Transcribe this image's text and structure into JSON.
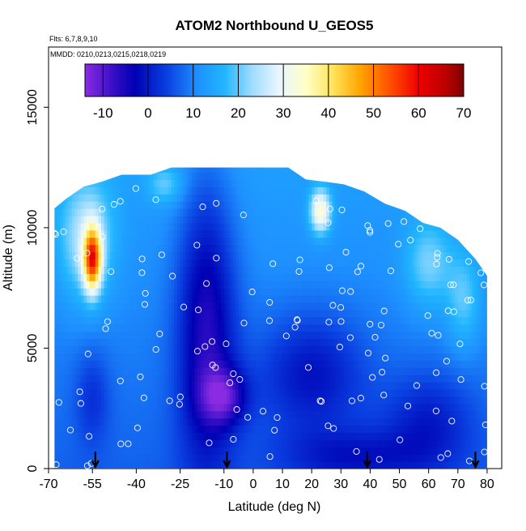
{
  "chart_data": {
    "type": "heatmap",
    "title": "ATOM2 Northbound U_GEOS5",
    "flights_note": "Flts: 6,7,8,9,10",
    "dates_note": "MMDD: 0210,0213,0215,0218,0219",
    "xlabel": "Latitude (deg N)",
    "ylabel": "Altitude (m)",
    "xlim": [
      -70,
      85
    ],
    "ylim": [
      0,
      17500
    ],
    "x_ticks": [
      -70,
      -55,
      -40,
      -25,
      -10,
      0,
      10,
      20,
      30,
      40,
      50,
      60,
      70,
      80
    ],
    "x_tick_labels": [
      "-70",
      "-55",
      "-40",
      "-25",
      "-10",
      "0",
      "10",
      "20",
      "30",
      "40",
      "50",
      "60",
      "70",
      "80"
    ],
    "y_ticks": [
      0,
      5000,
      10000,
      15000
    ],
    "y_tick_labels": [
      "0",
      "5000",
      "10000",
      "15000"
    ],
    "colorbar": {
      "min": -14,
      "max": 70,
      "ticks": [
        -10,
        0,
        10,
        20,
        30,
        40,
        50,
        60,
        70
      ],
      "tick_labels": [
        "-10",
        "0",
        "10",
        "20",
        "30",
        "40",
        "50",
        "60",
        "70"
      ],
      "colors": [
        {
          "v": -14,
          "c": "#8a2be2"
        },
        {
          "v": -8,
          "c": "#3a10c8"
        },
        {
          "v": -3,
          "c": "#0000b4"
        },
        {
          "v": 4,
          "c": "#0a3ee0"
        },
        {
          "v": 11,
          "c": "#1e90ff"
        },
        {
          "v": 17,
          "c": "#21b6ff"
        },
        {
          "v": 23,
          "c": "#9fdcff"
        },
        {
          "v": 29,
          "c": "#e8f6ff"
        },
        {
          "v": 35,
          "c": "#ffffc8"
        },
        {
          "v": 41,
          "c": "#ffe45a"
        },
        {
          "v": 47,
          "c": "#ffa500"
        },
        {
          "v": 54,
          "c": "#ff4b00"
        },
        {
          "v": 60,
          "c": "#ee0000"
        },
        {
          "v": 66,
          "c": "#bb0000"
        },
        {
          "v": 70,
          "c": "#800000"
        }
      ]
    },
    "arrows_latitude": [
      -54,
      -9,
      39,
      76
    ],
    "data_extent": {
      "lat_range": [
        -68,
        80
      ],
      "top_profile": [
        [
          -68,
          10800
        ],
        [
          -64,
          11200
        ],
        [
          -58,
          11700
        ],
        [
          -52,
          11900
        ],
        [
          -45,
          12200
        ],
        [
          -35,
          12200
        ],
        [
          -28,
          12500
        ],
        [
          -20,
          12500
        ],
        [
          12,
          12500
        ],
        [
          18,
          12000
        ],
        [
          25,
          11900
        ],
        [
          31,
          11800
        ],
        [
          38,
          11500
        ],
        [
          45,
          11000
        ],
        [
          52,
          10700
        ],
        [
          58,
          10200
        ],
        [
          64,
          10000
        ],
        [
          70,
          9500
        ],
        [
          76,
          8700
        ],
        [
          80,
          8000
        ]
      ]
    },
    "grid": false,
    "legend": "colorbar top"
  }
}
